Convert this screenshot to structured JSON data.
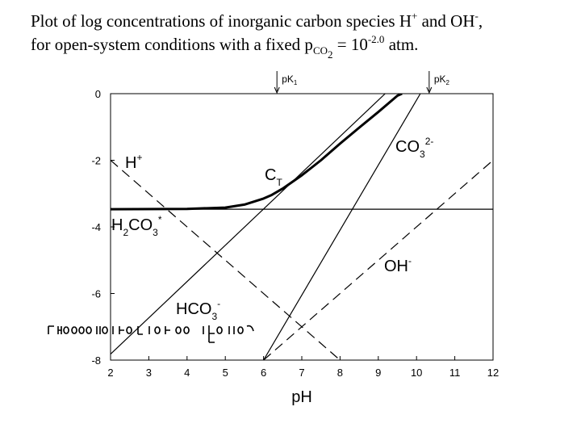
{
  "caption": {
    "line1_text": "Plot of log concentrations of inorganic carbon species H",
    "line1_sup1": "+",
    "line1_and": " and OH",
    "line1_sup2": "-",
    "line1_end": ",",
    "line2_text": "for open-system conditions with a fixed p",
    "line2_sub": "CO",
    "line2_subsub": "2",
    "line2_eq": " = 10",
    "line2_sup": "-2.0",
    "line2_end": " atm."
  },
  "chart_data": {
    "type": "line",
    "xlabel": "pH",
    "ylabel": "",
    "xlim": [
      2,
      12
    ],
    "ylim": [
      -8,
      0
    ],
    "x_ticks": [
      2,
      3,
      4,
      5,
      6,
      7,
      8,
      9,
      10,
      11,
      12
    ],
    "y_ticks": [
      0,
      -2,
      -4,
      -6,
      -8
    ],
    "grid": false,
    "pK_markers": [
      {
        "label": "pK",
        "sub": "1",
        "x": 6.35
      },
      {
        "label": "pK",
        "sub": "2",
        "x": 10.33
      }
    ],
    "species_labels": [
      {
        "text": "H",
        "sup": "+"
      },
      {
        "text": "C",
        "sub": "T"
      },
      {
        "text": "CO",
        "sub": "3",
        "sup": "2-"
      },
      {
        "text": "H",
        "sub": "2",
        "text2": "CO",
        "sub2": "3",
        "sup": "*"
      },
      {
        "text": "OH",
        "sup": "-"
      },
      {
        "text": "HCO",
        "sub": "3",
        "sup": "-"
      }
    ],
    "series": [
      {
        "name": "H+",
        "style": "dashed",
        "x": [
          2,
          8
        ],
        "y": [
          -2,
          -8
        ]
      },
      {
        "name": "OH-",
        "style": "dashed",
        "x": [
          6,
          12
        ],
        "y": [
          -8,
          -2
        ]
      },
      {
        "name": "H2CO3*",
        "style": "solid",
        "x": [
          2,
          12
        ],
        "y": [
          -3.47,
          -3.47
        ]
      },
      {
        "name": "HCO3-",
        "style": "solid",
        "x": [
          2,
          9.18
        ],
        "y": [
          -7.82,
          0
        ]
      },
      {
        "name": "CO3 2-",
        "style": "solid",
        "x": [
          6,
          10.1
        ],
        "y": [
          -8,
          0
        ]
      },
      {
        "name": "CT",
        "style": "bold",
        "x": [
          2,
          4,
          5,
          5.5,
          6,
          6.2,
          6.5,
          7,
          7.5,
          8,
          8.5,
          9,
          9.5,
          9.62
        ],
        "y": [
          -3.47,
          -3.46,
          -3.42,
          -3.33,
          -3.15,
          -3.05,
          -2.85,
          -2.45,
          -2.0,
          -1.5,
          -1.02,
          -0.55,
          -0.06,
          0
        ]
      }
    ]
  }
}
